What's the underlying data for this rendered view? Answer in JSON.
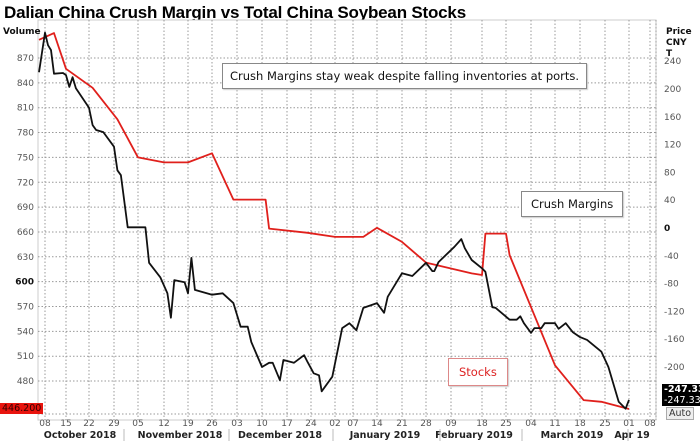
{
  "chart_data": {
    "type": "line",
    "title": "Dalian China Crush Margin vs Total  China Soybean Stocks",
    "left_axis": {
      "label": "Volume",
      "range": [
        446.2,
        900
      ],
      "ticks": [
        870,
        840,
        810,
        780,
        750,
        720,
        690,
        660,
        630,
        600,
        570,
        540,
        510,
        480
      ],
      "bold_tick": 600
    },
    "right_axis": {
      "label_lines": [
        "Price",
        "CNY",
        "T"
      ],
      "range": [
        -260,
        260
      ],
      "ticks": [
        240,
        200,
        160,
        120,
        80,
        40,
        0,
        -40,
        -80,
        -120,
        -160,
        -200
      ],
      "bold_tick": 0
    },
    "x_ticks": [
      {
        "date": "2018-10-08",
        "label": "08"
      },
      {
        "date": "2018-10-15",
        "label": "15"
      },
      {
        "date": "2018-10-22",
        "label": "22"
      },
      {
        "date": "2018-10-29",
        "label": "29"
      },
      {
        "date": "2018-11-05",
        "label": "05"
      },
      {
        "date": "2018-11-12",
        "label": "12"
      },
      {
        "date": "2018-11-19",
        "label": "19"
      },
      {
        "date": "2018-11-26",
        "label": "26"
      },
      {
        "date": "2018-12-03",
        "label": "03"
      },
      {
        "date": "2018-12-10",
        "label": "10"
      },
      {
        "date": "2018-12-17",
        "label": "17"
      },
      {
        "date": "2018-12-24",
        "label": "24"
      },
      {
        "date": "2019-01-02",
        "label": "02"
      },
      {
        "date": "2019-01-07",
        "label": "07"
      },
      {
        "date": "2019-01-14",
        "label": "14"
      },
      {
        "date": "2019-01-21",
        "label": "21"
      },
      {
        "date": "2019-01-28",
        "label": "28"
      },
      {
        "date": "2019-02-09",
        "label": "09"
      },
      {
        "date": "2019-02-18",
        "label": "18"
      },
      {
        "date": "2019-02-25",
        "label": "25"
      },
      {
        "date": "2019-03-04",
        "label": "04"
      },
      {
        "date": "2019-03-11",
        "label": "11"
      },
      {
        "date": "2019-03-18",
        "label": "18"
      },
      {
        "date": "2019-03-25",
        "label": "25"
      },
      {
        "date": "2019-04-01",
        "label": "01"
      },
      {
        "date": "2019-04-08",
        "label": "08"
      }
    ],
    "months": [
      "October 2018",
      "November 2018",
      "December 2018",
      "January 2019",
      "February 2019",
      "March 2019",
      "Apr 19"
    ],
    "grid": true,
    "series": [
      {
        "name": "Stocks",
        "axis": "left",
        "color": "#e0201c",
        "points": [
          [
            "2018-09-28",
            892
          ],
          [
            "2018-10-11",
            900
          ],
          [
            "2018-10-15",
            857
          ],
          [
            "2018-10-23",
            834
          ],
          [
            "2018-10-30",
            796
          ],
          [
            "2018-11-05",
            750
          ],
          [
            "2018-11-12",
            744
          ],
          [
            "2018-11-19",
            744
          ],
          [
            "2018-11-26",
            755
          ],
          [
            "2018-12-02",
            699
          ],
          [
            "2018-12-11",
            699
          ],
          [
            "2018-12-12",
            664
          ],
          [
            "2018-12-23",
            659
          ],
          [
            "2019-01-02",
            654
          ],
          [
            "2019-01-10",
            654
          ],
          [
            "2019-01-14",
            665
          ],
          [
            "2019-01-21",
            648
          ],
          [
            "2019-01-28",
            623
          ],
          [
            "2019-02-15",
            610
          ],
          [
            "2019-02-18",
            608
          ],
          [
            "2019-02-19",
            658
          ],
          [
            "2019-02-25",
            658
          ],
          [
            "2019-02-26",
            632
          ],
          [
            "2019-03-11",
            499
          ],
          [
            "2019-03-19",
            457
          ],
          [
            "2019-03-24",
            455
          ],
          [
            "2019-04-01",
            446.2
          ]
        ]
      },
      {
        "name": "Crush Margins",
        "axis": "right",
        "color": "#111111",
        "points": [
          [
            "2018-09-28",
            224
          ],
          [
            "2018-10-08",
            281
          ],
          [
            "2018-10-09",
            263
          ],
          [
            "2018-10-10",
            256
          ],
          [
            "2018-10-11",
            222
          ],
          [
            "2018-10-14",
            223
          ],
          [
            "2018-10-15",
            220
          ],
          [
            "2018-10-16",
            203
          ],
          [
            "2018-10-17",
            217
          ],
          [
            "2018-10-18",
            201
          ],
          [
            "2018-10-22",
            173
          ],
          [
            "2018-10-23",
            148
          ],
          [
            "2018-10-24",
            141
          ],
          [
            "2018-10-26",
            138
          ],
          [
            "2018-10-29",
            117
          ],
          [
            "2018-10-30",
            83
          ],
          [
            "2018-10-31",
            76
          ],
          [
            "2018-11-02",
            1
          ],
          [
            "2018-11-07",
            1
          ],
          [
            "2018-11-08",
            -50
          ],
          [
            "2018-11-11",
            -71
          ],
          [
            "2018-11-13",
            -94
          ],
          [
            "2018-11-14",
            -129
          ],
          [
            "2018-11-15",
            -75
          ],
          [
            "2018-11-18",
            -78
          ],
          [
            "2018-11-19",
            -94
          ],
          [
            "2018-11-20",
            -43
          ],
          [
            "2018-11-21",
            -89
          ],
          [
            "2018-11-26",
            -96
          ],
          [
            "2018-11-29",
            -94
          ],
          [
            "2018-12-02",
            -108
          ],
          [
            "2018-12-03",
            -125
          ],
          [
            "2018-12-04",
            -142
          ],
          [
            "2018-12-06",
            -142
          ],
          [
            "2018-12-07",
            -164
          ],
          [
            "2018-12-10",
            -200
          ],
          [
            "2018-12-12",
            -194
          ],
          [
            "2018-12-13",
            -194
          ],
          [
            "2018-12-15",
            -219
          ],
          [
            "2018-12-16",
            -190
          ],
          [
            "2018-12-19",
            -194
          ],
          [
            "2018-12-22",
            -183
          ],
          [
            "2018-12-23",
            -193
          ],
          [
            "2018-12-25",
            -209
          ],
          [
            "2018-12-27",
            -212
          ],
          [
            "2018-12-28",
            -235
          ],
          [
            "2019-01-01",
            -214
          ],
          [
            "2019-01-04",
            -144
          ],
          [
            "2019-01-06",
            -137
          ],
          [
            "2019-01-08",
            -147
          ],
          [
            "2019-01-10",
            -115
          ],
          [
            "2019-01-14",
            -108
          ],
          [
            "2019-01-16",
            -122
          ],
          [
            "2019-01-17",
            -99
          ],
          [
            "2019-01-21",
            -65
          ],
          [
            "2019-01-24",
            -69
          ],
          [
            "2019-01-28",
            -50
          ],
          [
            "2019-01-31",
            -62
          ],
          [
            "2019-02-01",
            -62
          ],
          [
            "2019-02-03",
            -49
          ],
          [
            "2019-02-10",
            -27
          ],
          [
            "2019-02-12",
            -16
          ],
          [
            "2019-02-13",
            -29
          ],
          [
            "2019-02-15",
            -46
          ],
          [
            "2019-02-18",
            -58
          ],
          [
            "2019-02-19",
            -63
          ],
          [
            "2019-02-21",
            -114
          ],
          [
            "2019-02-22",
            -115
          ],
          [
            "2019-02-26",
            -132
          ],
          [
            "2019-02-28",
            -132
          ],
          [
            "2019-03-01",
            -127
          ],
          [
            "2019-03-02",
            -137
          ],
          [
            "2019-03-04",
            -151
          ],
          [
            "2019-03-05",
            -144
          ],
          [
            "2019-03-07",
            -144
          ],
          [
            "2019-03-08",
            -137
          ],
          [
            "2019-03-11",
            -137
          ],
          [
            "2019-03-12",
            -145
          ],
          [
            "2019-03-14",
            -137
          ],
          [
            "2019-03-16",
            -150
          ],
          [
            "2019-03-18",
            -157
          ],
          [
            "2019-03-20",
            -161
          ],
          [
            "2019-03-24",
            -178
          ],
          [
            "2019-03-26",
            -200
          ],
          [
            "2019-03-29",
            -250
          ],
          [
            "2019-03-31",
            -260
          ],
          [
            "2019-04-01",
            -247.33
          ]
        ]
      }
    ],
    "annotations": {
      "headline": "Crush Margins stay weak despite falling inventories at ports.",
      "crush_label": "Crush Margins",
      "stocks_label": "Stocks"
    },
    "last_values": {
      "left": "446.200",
      "right_1": "-247.33",
      "right_2": "-247.33",
      "scale_mode": "Auto"
    }
  }
}
